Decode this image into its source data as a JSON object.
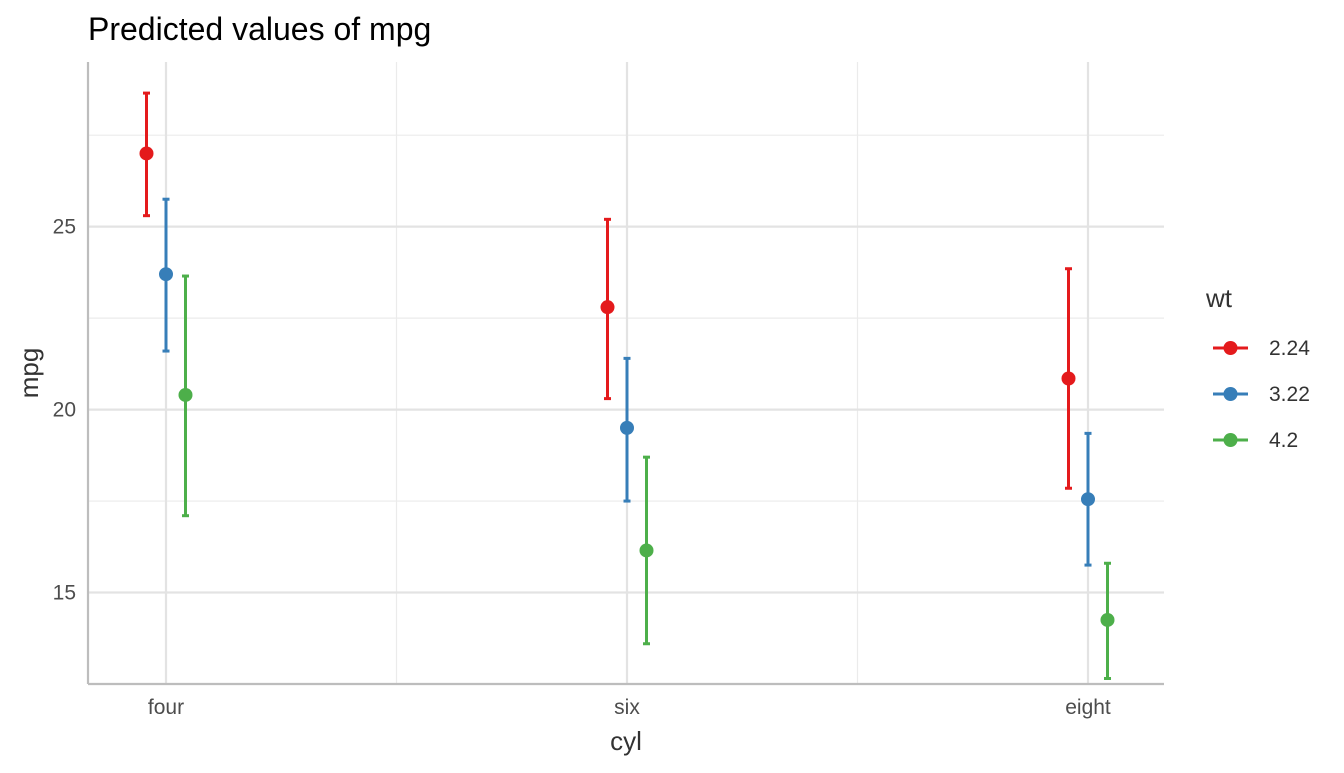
{
  "chart_data": {
    "type": "scatter",
    "title": "Predicted values of mpg",
    "xlabel": "cyl",
    "ylabel": "mpg",
    "categories": [
      "four",
      "six",
      "eight"
    ],
    "ylim": [
      12.5,
      29.5
    ],
    "yticks": [
      15,
      20,
      25
    ],
    "grid": true,
    "legend": {
      "title": "wt",
      "position": "right"
    },
    "series": [
      {
        "name": "2.24",
        "color": "#E41A1C",
        "values": [
          27.0,
          22.8,
          20.85
        ],
        "lower": [
          25.3,
          20.3,
          17.85
        ],
        "upper": [
          28.65,
          25.2,
          23.85
        ]
      },
      {
        "name": "3.22",
        "color": "#377EB8",
        "values": [
          23.7,
          19.5,
          17.55
        ],
        "lower": [
          21.6,
          17.5,
          15.75
        ],
        "upper": [
          25.75,
          21.4,
          19.35
        ]
      },
      {
        "name": "4.2",
        "color": "#4DAF4A",
        "values": [
          20.4,
          16.15,
          14.25
        ],
        "lower": [
          17.1,
          13.6,
          12.65
        ],
        "upper": [
          23.65,
          18.7,
          15.8
        ]
      }
    ]
  }
}
